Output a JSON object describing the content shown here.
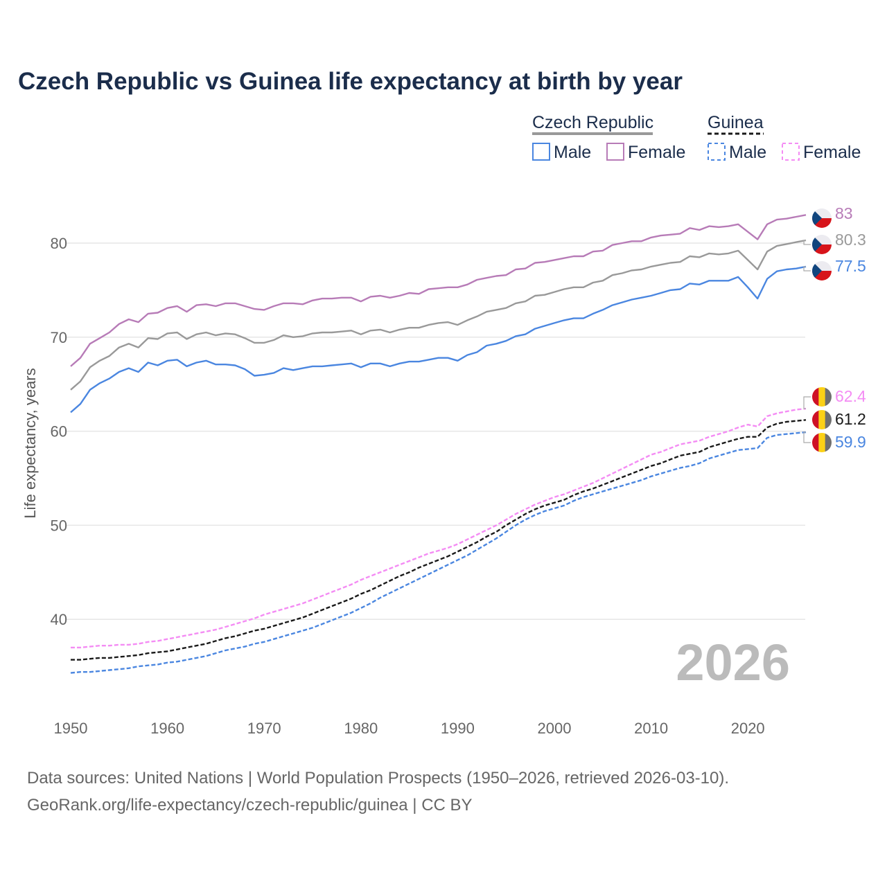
{
  "chart_data": {
    "type": "line",
    "title": "Czech Republic vs Guinea life expectancy at birth by year",
    "xlabel": "",
    "ylabel": "Life expectancy, years",
    "xlim": [
      1950,
      2026
    ],
    "ylim": [
      30,
      87
    ],
    "x_ticks": [
      "1950",
      "1960",
      "1970",
      "1980",
      "1990",
      "2000",
      "2010",
      "2020"
    ],
    "y_ticks": [
      "40",
      "50",
      "60",
      "70",
      "80"
    ],
    "grid": true,
    "year_watermark": "2026",
    "legend": {
      "placement": "top-right",
      "groups": [
        {
          "name": "Czech Republic",
          "entries": [
            "Male",
            "Female"
          ]
        },
        {
          "name": "Guinea",
          "entries": [
            "Male",
            "Female"
          ]
        }
      ]
    },
    "start_year": 1950,
    "series": [
      {
        "name": "Czech Republic Female",
        "country": "Czech Republic",
        "sex": "Female",
        "color": "#b77bb7",
        "dashed": false,
        "end_label": "83",
        "values": [
          66.9,
          67.8,
          69.3,
          69.9,
          70.5,
          71.4,
          71.9,
          71.6,
          72.5,
          72.6,
          73.1,
          73.3,
          72.7,
          73.4,
          73.5,
          73.3,
          73.6,
          73.6,
          73.3,
          73.0,
          72.9,
          73.3,
          73.6,
          73.6,
          73.5,
          73.9,
          74.1,
          74.1,
          74.2,
          74.2,
          73.8,
          74.3,
          74.4,
          74.2,
          74.4,
          74.7,
          74.6,
          75.1,
          75.2,
          75.3,
          75.3,
          75.6,
          76.1,
          76.3,
          76.5,
          76.6,
          77.2,
          77.3,
          77.9,
          78.0,
          78.2,
          78.4,
          78.6,
          78.6,
          79.1,
          79.2,
          79.8,
          80.0,
          80.2,
          80.2,
          80.6,
          80.8,
          80.9,
          81.0,
          81.6,
          81.4,
          81.8,
          81.7,
          81.8,
          82.0,
          81.2,
          80.4,
          82.0,
          82.5,
          82.6,
          82.8,
          83.0
        ]
      },
      {
        "name": "Czech Republic Total",
        "country": "Czech Republic",
        "sex": "Total",
        "color": "#999999",
        "dashed": false,
        "end_label": "80.3",
        "values": [
          64.4,
          65.3,
          66.8,
          67.5,
          68.0,
          68.9,
          69.3,
          68.9,
          69.9,
          69.8,
          70.4,
          70.5,
          69.8,
          70.3,
          70.5,
          70.2,
          70.4,
          70.3,
          69.9,
          69.4,
          69.4,
          69.7,
          70.2,
          70.0,
          70.1,
          70.4,
          70.5,
          70.5,
          70.6,
          70.7,
          70.3,
          70.7,
          70.8,
          70.5,
          70.8,
          71.0,
          71.0,
          71.3,
          71.5,
          71.6,
          71.3,
          71.8,
          72.2,
          72.7,
          72.9,
          73.1,
          73.6,
          73.8,
          74.4,
          74.5,
          74.8,
          75.1,
          75.3,
          75.3,
          75.8,
          76.0,
          76.6,
          76.8,
          77.1,
          77.2,
          77.5,
          77.7,
          77.9,
          78.0,
          78.6,
          78.5,
          78.9,
          78.8,
          78.9,
          79.2,
          78.2,
          77.2,
          79.1,
          79.7,
          79.9,
          80.1,
          80.3
        ]
      },
      {
        "name": "Czech Republic Male",
        "country": "Czech Republic",
        "sex": "Male",
        "color": "#4a86e0",
        "dashed": false,
        "end_label": "77.5",
        "values": [
          62.0,
          62.9,
          64.4,
          65.1,
          65.6,
          66.3,
          66.7,
          66.3,
          67.3,
          67.0,
          67.5,
          67.6,
          66.9,
          67.3,
          67.5,
          67.1,
          67.1,
          67.0,
          66.6,
          65.9,
          66.0,
          66.2,
          66.7,
          66.5,
          66.7,
          66.9,
          66.9,
          67.0,
          67.1,
          67.2,
          66.8,
          67.2,
          67.2,
          66.9,
          67.2,
          67.4,
          67.4,
          67.6,
          67.8,
          67.8,
          67.5,
          68.1,
          68.4,
          69.1,
          69.3,
          69.6,
          70.1,
          70.3,
          70.9,
          71.2,
          71.5,
          71.8,
          72.0,
          72.0,
          72.5,
          72.9,
          73.4,
          73.7,
          74.0,
          74.2,
          74.4,
          74.7,
          75.0,
          75.1,
          75.7,
          75.6,
          76.0,
          76.0,
          76.0,
          76.4,
          75.3,
          74.1,
          76.2,
          77.0,
          77.2,
          77.3,
          77.5
        ]
      },
      {
        "name": "Guinea Female",
        "country": "Guinea",
        "sex": "Female",
        "color": "#f48cf4",
        "dashed": true,
        "end_label": "62.4",
        "values": [
          37.0,
          37.0,
          37.1,
          37.2,
          37.2,
          37.3,
          37.3,
          37.4,
          37.6,
          37.7,
          37.9,
          38.1,
          38.3,
          38.5,
          38.7,
          38.9,
          39.2,
          39.5,
          39.8,
          40.1,
          40.5,
          40.8,
          41.1,
          41.4,
          41.7,
          42.1,
          42.5,
          42.9,
          43.3,
          43.7,
          44.2,
          44.6,
          45.0,
          45.4,
          45.8,
          46.2,
          46.6,
          47.0,
          47.3,
          47.6,
          48.0,
          48.5,
          49.0,
          49.5,
          50.0,
          50.6,
          51.2,
          51.7,
          52.2,
          52.6,
          53.0,
          53.3,
          53.7,
          54.1,
          54.5,
          55.0,
          55.5,
          56.0,
          56.5,
          57.0,
          57.5,
          57.8,
          58.2,
          58.6,
          58.8,
          59.0,
          59.4,
          59.7,
          60.0,
          60.4,
          60.7,
          60.5,
          61.6,
          61.9,
          62.1,
          62.3,
          62.4
        ]
      },
      {
        "name": "Guinea Total",
        "country": "Guinea",
        "sex": "Total",
        "color": "#1a1a1a",
        "dashed": true,
        "end_label": "61.2",
        "values": [
          35.7,
          35.7,
          35.8,
          35.9,
          35.9,
          36.0,
          36.1,
          36.2,
          36.4,
          36.5,
          36.6,
          36.8,
          37.0,
          37.2,
          37.4,
          37.7,
          38.0,
          38.2,
          38.5,
          38.8,
          39.0,
          39.3,
          39.6,
          39.9,
          40.2,
          40.6,
          41.0,
          41.4,
          41.8,
          42.2,
          42.7,
          43.1,
          43.6,
          44.1,
          44.6,
          45.0,
          45.5,
          45.9,
          46.3,
          46.7,
          47.2,
          47.7,
          48.2,
          48.8,
          49.3,
          50.0,
          50.6,
          51.2,
          51.7,
          52.1,
          52.4,
          52.7,
          53.2,
          53.6,
          53.9,
          54.3,
          54.7,
          55.1,
          55.5,
          55.9,
          56.3,
          56.6,
          57.0,
          57.4,
          57.6,
          57.8,
          58.3,
          58.6,
          58.9,
          59.2,
          59.4,
          59.4,
          60.4,
          60.8,
          61.0,
          61.1,
          61.2
        ]
      },
      {
        "name": "Guinea Male",
        "country": "Guinea",
        "sex": "Male",
        "color": "#4a86e0",
        "dashed": true,
        "end_label": "59.9",
        "values": [
          34.3,
          34.4,
          34.4,
          34.5,
          34.6,
          34.7,
          34.8,
          35.0,
          35.1,
          35.2,
          35.4,
          35.5,
          35.7,
          35.9,
          36.1,
          36.4,
          36.7,
          36.9,
          37.1,
          37.4,
          37.6,
          37.9,
          38.2,
          38.5,
          38.8,
          39.1,
          39.5,
          39.9,
          40.3,
          40.7,
          41.2,
          41.7,
          42.3,
          42.8,
          43.3,
          43.8,
          44.3,
          44.8,
          45.3,
          45.8,
          46.3,
          46.8,
          47.4,
          48.0,
          48.6,
          49.3,
          50.0,
          50.6,
          51.1,
          51.5,
          51.8,
          52.1,
          52.6,
          53.0,
          53.3,
          53.6,
          53.9,
          54.2,
          54.5,
          54.8,
          55.2,
          55.5,
          55.8,
          56.1,
          56.3,
          56.6,
          57.1,
          57.4,
          57.7,
          58.0,
          58.1,
          58.2,
          59.3,
          59.6,
          59.7,
          59.8,
          59.9
        ]
      }
    ]
  },
  "footer": {
    "sources": "Data sources: United Nations | World Population Prospects (1950–2026, retrieved 2026-03-10).",
    "link": "GeoRank.org/life-expectancy/czech-republic/guinea | CC BY"
  },
  "colors": {
    "title": "#1b2d4b",
    "axis_text": "#666666",
    "grid": "#e6e6e6",
    "watermark": "#bbbbbb"
  }
}
